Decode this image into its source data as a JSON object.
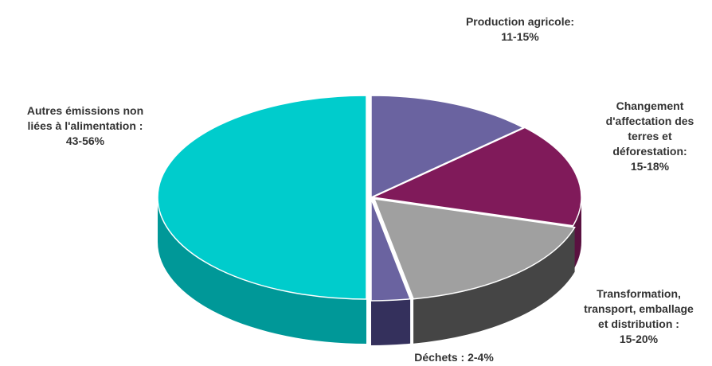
{
  "chart_data": {
    "type": "pie",
    "title": "",
    "slices": [
      {
        "label_lines": [
          "Production agricole:",
          "11-15%"
        ],
        "range": "11-15%",
        "value": 13,
        "color": "#6a63a0"
      },
      {
        "label_lines": [
          "Changement",
          "d'affectation des",
          "terres et",
          "déforestation:",
          "15-18%"
        ],
        "range": "15-18%",
        "value": 16.5,
        "color": "#801a5a"
      },
      {
        "label_lines": [
          "Transformation,",
          "transport, emballage",
          "et distribution :",
          "15-20%"
        ],
        "range": "15-20%",
        "value": 17.5,
        "color": "#a0a0a0"
      },
      {
        "label_lines": [
          "Déchets : 2-4%"
        ],
        "range": "2-4%",
        "value": 3,
        "color": "#6a63a0"
      },
      {
        "label_lines": [
          "Autres émissions non",
          "liées à l'alimentation :",
          "43-56%"
        ],
        "range": "43-56%",
        "value": 50,
        "color": "#00cccc"
      }
    ],
    "style": "3d-pie"
  }
}
